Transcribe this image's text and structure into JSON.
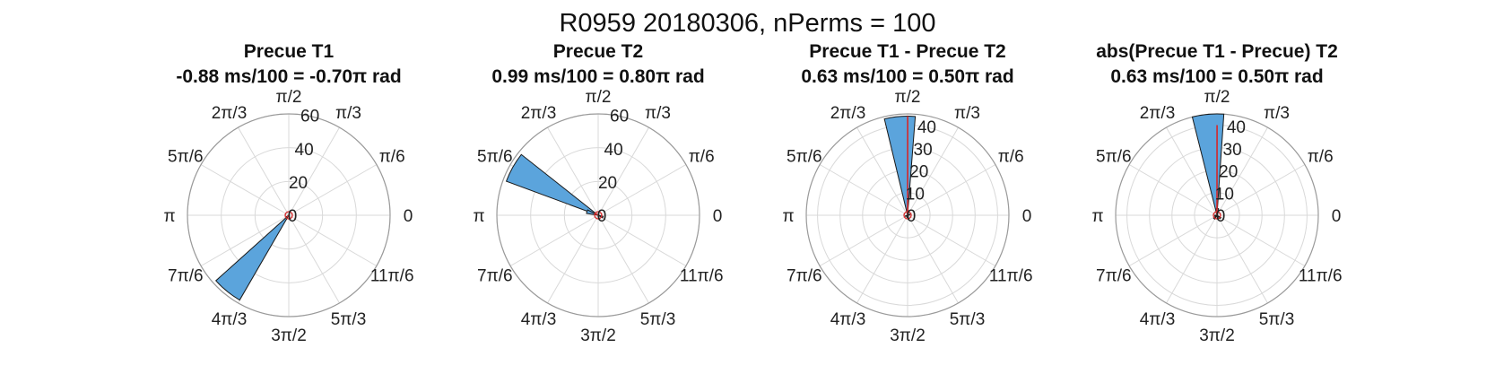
{
  "figure": {
    "suptitle": "R0959 20180306, nPerms = 100",
    "colors": {
      "bar_fill": "#5ba4dc",
      "bar_edge": "#1a1a1a",
      "mean_line": "#d62728",
      "grid": "#d9d9d9"
    }
  },
  "chart_data": [
    {
      "type": "polar-histogram",
      "title": "Precue T1",
      "subtitle": "-0.88 ms/100 = -0.70π rad",
      "angle_tick_labels": [
        "0",
        "π/6",
        "π/3",
        "π/2",
        "2π/3",
        "5π/6",
        "π",
        "7π/6",
        "4π/3",
        "3π/2",
        "5π/3",
        "11π/6"
      ],
      "r_ticks": [
        0,
        20,
        40,
        60
      ],
      "rlim": [
        0,
        60
      ],
      "bars": [
        {
          "angle_center_rad": 4.03,
          "count": 58
        },
        {
          "angle_center_rad": 3.88,
          "count": 2
        }
      ],
      "mean_line": {
        "angle_rad": 4.08,
        "length": 1.5
      }
    },
    {
      "type": "polar-histogram",
      "title": "Precue T2",
      "subtitle": "0.99 ms/100 = 0.80π rad",
      "angle_tick_labels": [
        "0",
        "π/6",
        "π/3",
        "π/2",
        "2π/3",
        "5π/6",
        "π",
        "7π/6",
        "4π/3",
        "3π/2",
        "5π/3",
        "11π/6"
      ],
      "r_ticks": [
        0,
        20,
        40,
        60
      ],
      "rlim": [
        0,
        60
      ],
      "bars": [
        {
          "angle_center_rad": 2.63,
          "count": 58
        },
        {
          "angle_center_rad": 2.83,
          "count": 7
        },
        {
          "angle_center_rad": 5.9,
          "count": 3
        }
      ],
      "mean_line": {
        "angle_rad": 2.6,
        "length": 2.5
      }
    },
    {
      "type": "polar-histogram",
      "title": "Precue T1 - Precue T2",
      "subtitle": "0.63 ms/100 = 0.50π rad",
      "angle_tick_labels": [
        "0",
        "π/6",
        "π/3",
        "π/2",
        "2π/3",
        "5π/6",
        "π",
        "7π/6",
        "4π/3",
        "3π/2",
        "5π/3",
        "11π/6"
      ],
      "r_ticks": [
        0,
        10,
        20,
        30,
        40
      ],
      "rlim": [
        0,
        45
      ],
      "bars": [
        {
          "angle_center_rad": 1.65,
          "count": 44
        },
        {
          "angle_center_rad": 1.5,
          "count": 2
        },
        {
          "angle_center_rad": 4.6,
          "count": 1
        },
        {
          "angle_center_rad": 4.8,
          "count": 1
        },
        {
          "angle_center_rad": 3.6,
          "count": 1
        },
        {
          "angle_center_rad": 0.3,
          "count": 1
        }
      ],
      "mean_line": {
        "angle_rad": 1.57,
        "length": 44
      }
    },
    {
      "type": "polar-histogram",
      "title": "abs(Precue T1 - Precue) T2",
      "subtitle": "0.63 ms/100 = 0.50π rad",
      "angle_tick_labels": [
        "0",
        "π/6",
        "π/3",
        "π/2",
        "2π/3",
        "5π/6",
        "π",
        "7π/6",
        "4π/3",
        "3π/2",
        "5π/3",
        "11π/6"
      ],
      "r_ticks": [
        0,
        10,
        20,
        30,
        40
      ],
      "rlim": [
        0,
        45
      ],
      "bars": [
        {
          "angle_center_rad": 1.66,
          "count": 45
        },
        {
          "angle_center_rad": 1.5,
          "count": 3
        },
        {
          "angle_center_rad": 4.0,
          "count": 2
        },
        {
          "angle_center_rad": 5.6,
          "count": 2
        },
        {
          "angle_center_rad": 3.3,
          "count": 1
        }
      ],
      "mean_line": {
        "angle_rad": 1.57,
        "length": 40
      }
    }
  ]
}
